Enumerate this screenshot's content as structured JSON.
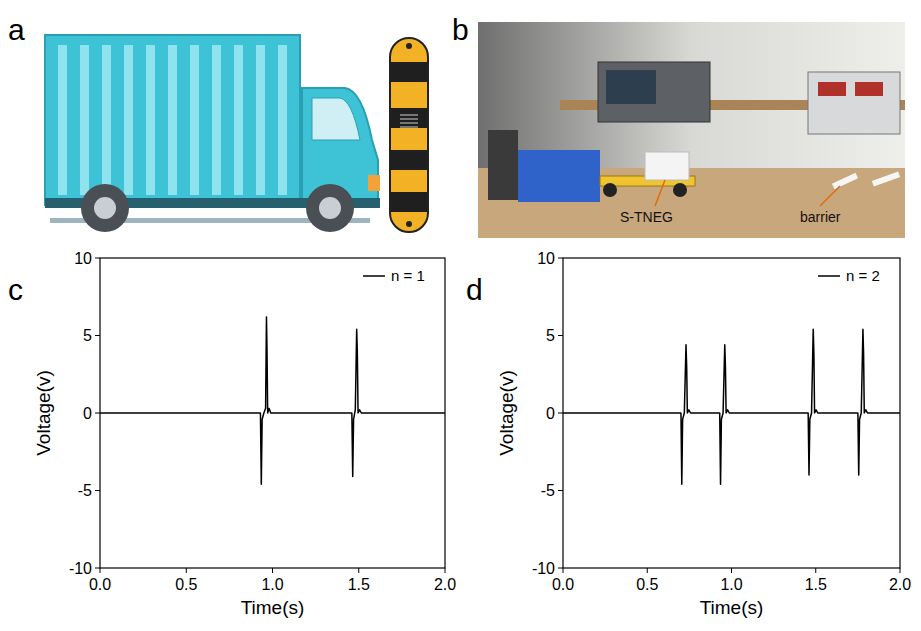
{
  "panels": {
    "letters": [
      "a",
      "b",
      "c",
      "d"
    ],
    "photo_labels": [
      "S-TNEG",
      "barrier"
    ]
  },
  "chart_data": [
    {
      "type": "line",
      "x": [
        0,
        0.93,
        0.935,
        0.94,
        0.95,
        0.96,
        0.965,
        0.968,
        0.972,
        0.98,
        0.99,
        1.0,
        1.46,
        1.465,
        1.47,
        1.48,
        1.488,
        1.492,
        1.496,
        1.505,
        1.515,
        1.525,
        2.0
      ],
      "series": [
        {
          "name": "n = 1",
          "color": "#000000",
          "values": [
            0,
            0,
            -4.6,
            -0.4,
            0,
            0.3,
            6.2,
            4.2,
            0,
            0.3,
            0,
            0,
            0,
            -4.1,
            -0.4,
            0.2,
            5.4,
            3.8,
            0,
            0.2,
            0,
            0,
            0
          ]
        }
      ],
      "xlim": [
        0,
        2
      ],
      "ylim": [
        -10,
        10
      ],
      "xticks": [
        {
          "value": 0,
          "label": "0.0"
        },
        {
          "value": 0.5,
          "label": "0.5"
        },
        {
          "value": 1,
          "label": "1.0"
        },
        {
          "value": 1.5,
          "label": "1.5"
        },
        {
          "value": 2,
          "label": "2.0"
        }
      ],
      "yticks": [
        -10,
        -5,
        0,
        5,
        10
      ],
      "x_label": "Time(s)",
      "y_label": "Voltage(v)",
      "legend": "upper right",
      "grid": false
    },
    {
      "type": "line",
      "x": [
        0,
        0.7,
        0.705,
        0.71,
        0.72,
        0.73,
        0.734,
        0.738,
        0.747,
        0.757,
        0.93,
        0.935,
        0.94,
        0.95,
        0.96,
        0.964,
        0.968,
        0.977,
        0.987,
        1.455,
        1.46,
        1.465,
        1.475,
        1.485,
        1.489,
        1.493,
        1.502,
        1.512,
        1.75,
        1.755,
        1.76,
        1.77,
        1.78,
        1.784,
        1.788,
        1.797,
        1.807,
        2.0
      ],
      "series": [
        {
          "name": "n = 2",
          "color": "#000000",
          "values": [
            0,
            0,
            -4.6,
            -0.4,
            0,
            4.4,
            3.0,
            0,
            0.2,
            0,
            0,
            -4.6,
            -0.4,
            0,
            4.4,
            3.0,
            0,
            0.2,
            0,
            0,
            -4.0,
            -0.4,
            0,
            5.4,
            3.8,
            0,
            0.2,
            0,
            0,
            -4.0,
            -0.4,
            0,
            5.4,
            3.8,
            0,
            0.2,
            0,
            0
          ]
        }
      ],
      "xlim": [
        0,
        2
      ],
      "ylim": [
        -10,
        10
      ],
      "xticks": [
        {
          "value": 0,
          "label": "0.0"
        },
        {
          "value": 0.5,
          "label": "0.5"
        },
        {
          "value": 1,
          "label": "1.0"
        },
        {
          "value": 1.5,
          "label": "1.5"
        },
        {
          "value": 2,
          "label": "2.0"
        }
      ],
      "yticks": [
        -10,
        -5,
        0,
        5,
        10
      ],
      "x_label": "Time(s)",
      "y_label": "Voltage(v)",
      "legend": "upper right",
      "grid": false
    }
  ]
}
